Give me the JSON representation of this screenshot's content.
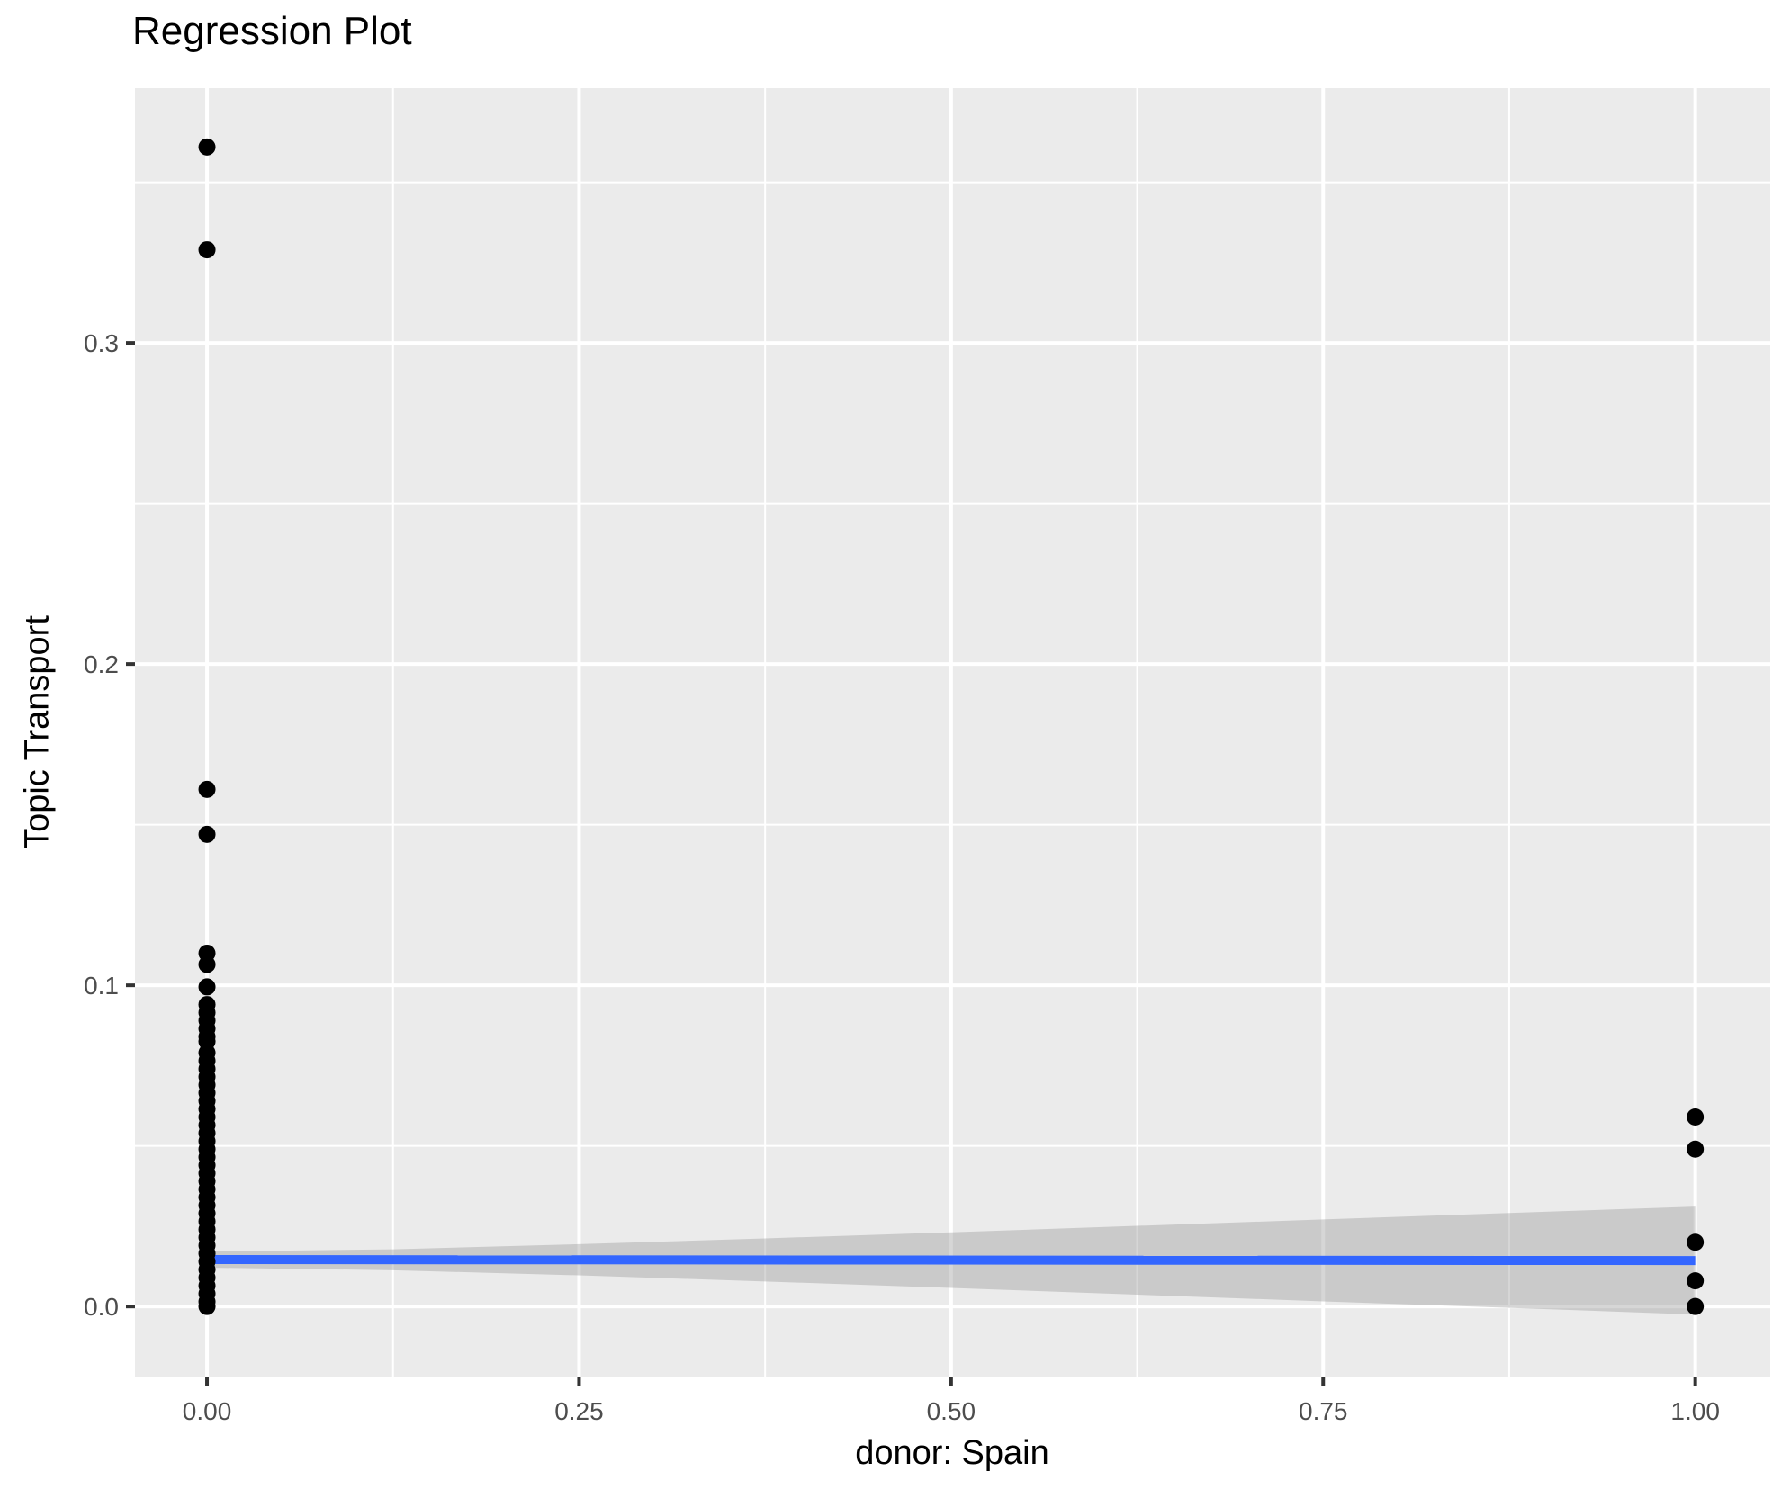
{
  "chart_data": {
    "type": "scatter",
    "title": "Regression Plot",
    "xlabel": "donor: Spain",
    "ylabel": "Topic Transport",
    "grid": "on",
    "legend": "none",
    "x_axis": {
      "min": -0.0484,
      "max": 1.0504,
      "major_ticks": [
        0.0,
        0.25,
        0.5,
        0.75,
        1.0
      ],
      "tick_labels": [
        "0.00",
        "0.25",
        "0.50",
        "0.75",
        "1.00"
      ],
      "minor_ticks": [
        0.125,
        0.375,
        0.625,
        0.875
      ]
    },
    "y_axis": {
      "min": -0.0218,
      "max": 0.3793,
      "major_ticks": [
        0.0,
        0.1,
        0.2,
        0.3
      ],
      "tick_labels": [
        "0.0",
        "0.1",
        "0.2",
        "0.3"
      ],
      "minor_ticks": [
        0.05,
        0.15,
        0.25,
        0.35
      ]
    },
    "points": [
      [
        0,
        0.361
      ],
      [
        0,
        0.329
      ],
      [
        0,
        0.161
      ],
      [
        0,
        0.147
      ],
      [
        0,
        0.11
      ],
      [
        0,
        0.1065
      ],
      [
        0,
        0.0995
      ],
      [
        0,
        0.094
      ],
      [
        0,
        0.0915
      ],
      [
        0,
        0.089
      ],
      [
        0,
        0.0865
      ],
      [
        0,
        0.084
      ],
      [
        0,
        0.0825
      ],
      [
        0,
        0.079
      ],
      [
        0,
        0.0765
      ],
      [
        0,
        0.074
      ],
      [
        0,
        0.0715
      ],
      [
        0,
        0.069
      ],
      [
        0,
        0.0665
      ],
      [
        0,
        0.064
      ],
      [
        0,
        0.0615
      ],
      [
        0,
        0.059
      ],
      [
        0,
        0.0565
      ],
      [
        0,
        0.054
      ],
      [
        0,
        0.0515
      ],
      [
        0,
        0.049
      ],
      [
        0,
        0.0465
      ],
      [
        0,
        0.044
      ],
      [
        0,
        0.0415
      ],
      [
        0,
        0.039
      ],
      [
        0,
        0.0365
      ],
      [
        0,
        0.034
      ],
      [
        0,
        0.0315
      ],
      [
        0,
        0.029
      ],
      [
        0,
        0.0265
      ],
      [
        0,
        0.024
      ],
      [
        0,
        0.0215
      ],
      [
        0,
        0.019
      ],
      [
        0,
        0.0165
      ],
      [
        0,
        0.014
      ],
      [
        0,
        0.0115
      ],
      [
        0,
        0.009
      ],
      [
        0,
        0.0065
      ],
      [
        0,
        0.004
      ],
      [
        0,
        0.0015
      ],
      [
        0,
        0.0
      ],
      [
        1,
        0.059
      ],
      [
        1,
        0.049
      ],
      [
        1,
        0.02
      ],
      [
        1,
        0.008
      ],
      [
        1,
        0.0
      ]
    ],
    "regression_line": {
      "x": [
        0,
        1
      ],
      "y": [
        0.0146,
        0.0143
      ]
    },
    "confidence_band": {
      "x": [
        0.0,
        0.125,
        0.25,
        0.375,
        0.5,
        0.625,
        0.75,
        0.875,
        1.0
      ],
      "upper": [
        0.0171,
        0.0178,
        0.0194,
        0.0212,
        0.0231,
        0.0251,
        0.0271,
        0.0291,
        0.0311
      ],
      "lower": [
        0.0121,
        0.0113,
        0.0097,
        0.0078,
        0.0058,
        0.0037,
        0.0016,
        -0.0004,
        -0.0025
      ]
    },
    "colors": {
      "panel_bg": "#EBEBEB",
      "grid_major": "#FFFFFF",
      "grid_minor": "#FFFFFF",
      "point": "#000000",
      "line": "#3366FF",
      "band_fill": "rgba(153,153,153,0.4)",
      "tick_text": "#4D4D4D",
      "tick_mark": "#333333",
      "title_text": "#000000"
    }
  }
}
